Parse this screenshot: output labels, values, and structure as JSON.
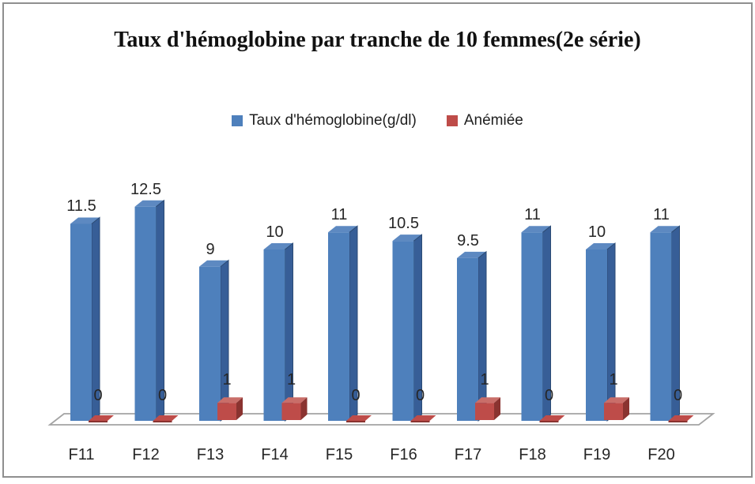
{
  "title": "Taux d'hémoglobine par tranche de 10 femmes(2e série)",
  "legend": [
    {
      "label": "Taux d'hémoglobine(g/dl)",
      "color": "#4E80BC"
    },
    {
      "label": "Anémiée",
      "color": "#BE4C49"
    }
  ],
  "chart_data": {
    "type": "bar",
    "style": "3d-clustered-column",
    "title": "Taux d'hémoglobine par tranche de 10 femmes(2e série)",
    "categories": [
      "F11",
      "F12",
      "F13",
      "F14",
      "F15",
      "F16",
      "F17",
      "F18",
      "F19",
      "F20"
    ],
    "series": [
      {
        "name": "Taux d'hémoglobine(g/dl)",
        "color": "#4E80BC",
        "values": [
          11.5,
          12.5,
          9,
          10,
          11,
          10.5,
          9.5,
          11,
          10,
          11
        ]
      },
      {
        "name": "Anémiée",
        "color": "#BE4C49",
        "values": [
          0,
          0,
          1,
          1,
          0,
          0,
          1,
          0,
          1,
          0
        ]
      }
    ],
    "xlabel": "",
    "ylabel": "",
    "ylim": [
      0,
      13
    ],
    "grid": false,
    "axes_visible": false,
    "data_labels": true,
    "legend_position": "top-center"
  },
  "colors": {
    "blue_front": "#4E80BC",
    "blue_top": "#5D89C1",
    "blue_side": "#375E97",
    "blue_side_dark": "#2C4B74",
    "red_front": "#BE4C49",
    "red_top": "#C96E69",
    "red_side": "#8A3330",
    "floor_stroke": "#A3A3A3",
    "label_color": "#262626"
  }
}
